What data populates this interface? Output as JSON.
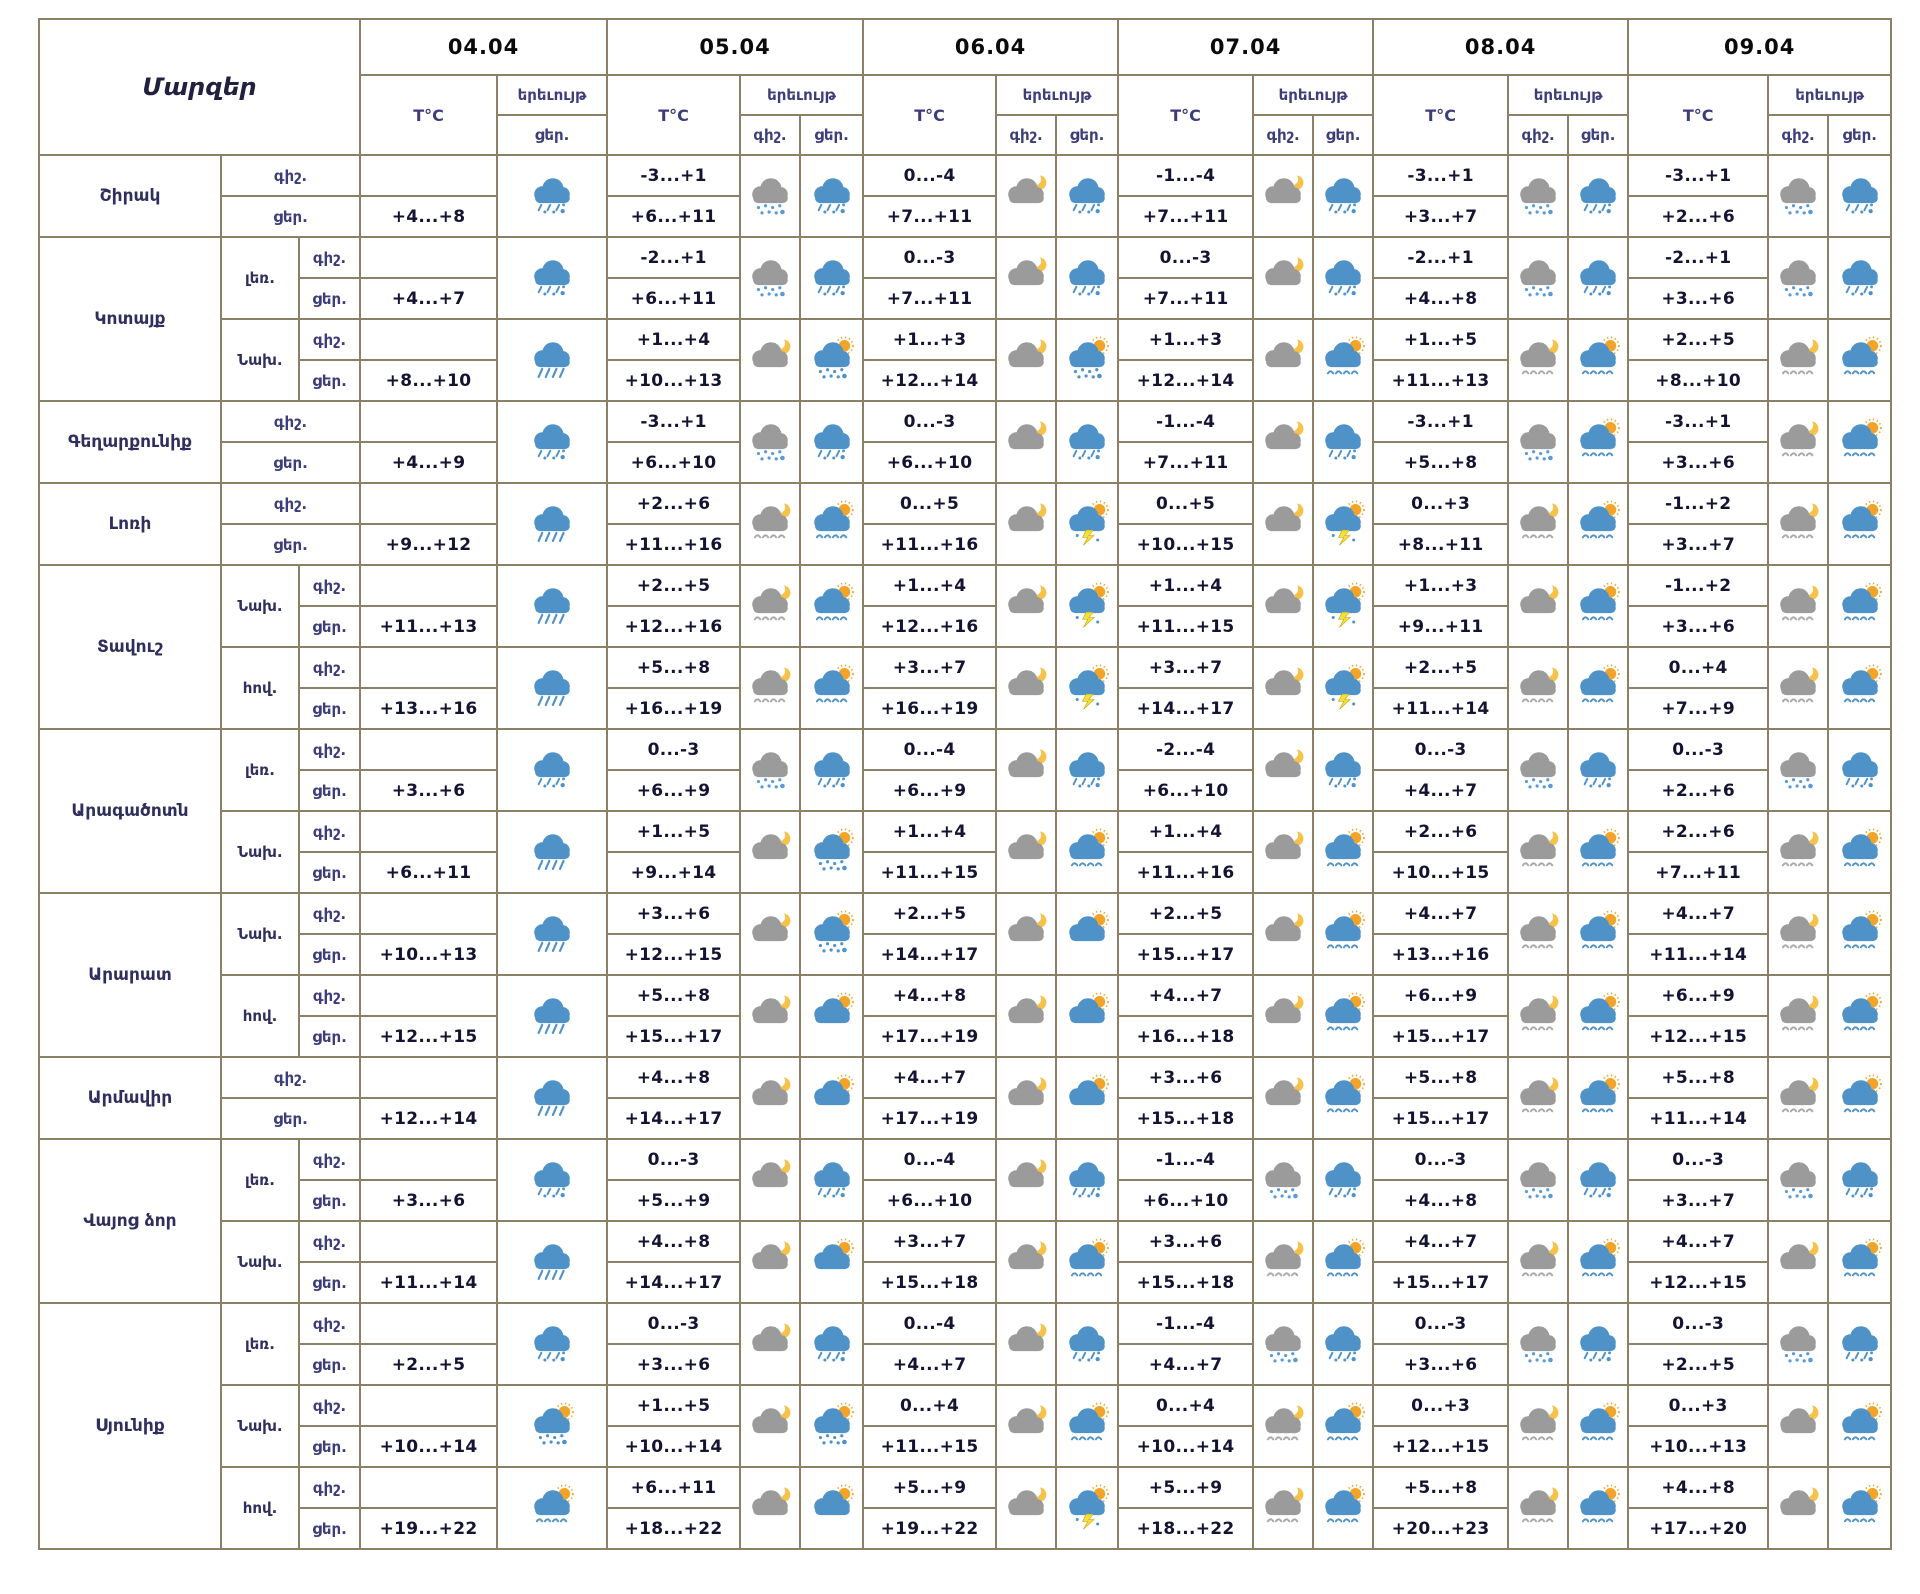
{
  "chart_data": {
    "type": "table",
    "title": "Մարզեր",
    "labels": {
      "temp": "T°C",
      "phenomenon": "երեւույթ",
      "night": "գիշ.",
      "day": "ցեր."
    },
    "dates": [
      "04.04",
      "05.04",
      "06.04",
      "07.04",
      "08.04",
      "09.04"
    ],
    "icon_types": [
      "sleet",
      "rain",
      "snow",
      "moon",
      "moon-drizzle",
      "sun",
      "sun-drizzle",
      "sun-sleet",
      "sun-thunder"
    ],
    "colors": {
      "border": "#8c8166",
      "cloud_blue": "#4e92c8",
      "cloud_gray": "#9b9b9b",
      "sun": "#f3a428",
      "moon": "#f6c24a",
      "bolt": "#f3e03a",
      "precip_blue": "#4e92c8",
      "precip_gray": "#a8a8a8",
      "snow_dot": "#5b9bd5"
    },
    "regions": [
      {
        "name": "Շիրակ",
        "subs": [
          {
            "label": null,
            "days": [
              {
                "n": "",
                "d": "+4...+8",
                "di": "sleet"
              },
              {
                "n": "-3...+1",
                "d": "+6...+11",
                "ni": "snow",
                "di": "sleet"
              },
              {
                "n": "0...-4",
                "d": "+7...+11",
                "ni": "moon",
                "di": "sleet"
              },
              {
                "n": "-1...-4",
                "d": "+7...+11",
                "ni": "moon",
                "di": "sleet"
              },
              {
                "n": "-3...+1",
                "d": "+3...+7",
                "ni": "snow",
                "di": "sleet"
              },
              {
                "n": "-3...+1",
                "d": "+2...+6",
                "ni": "snow",
                "di": "sleet"
              }
            ]
          }
        ]
      },
      {
        "name": "Կոտայք",
        "subs": [
          {
            "label": "լեռ.",
            "days": [
              {
                "n": "",
                "d": "+4...+7",
                "di": "sleet"
              },
              {
                "n": "-2...+1",
                "d": "+6...+11",
                "ni": "snow",
                "di": "sleet"
              },
              {
                "n": "0...-3",
                "d": "+7...+11",
                "ni": "moon",
                "di": "sleet"
              },
              {
                "n": "0...-3",
                "d": "+7...+11",
                "ni": "moon",
                "di": "sleet"
              },
              {
                "n": "-2...+1",
                "d": "+4...+8",
                "ni": "snow",
                "di": "sleet"
              },
              {
                "n": "-2...+1",
                "d": "+3...+6",
                "ni": "snow",
                "di": "sleet"
              }
            ]
          },
          {
            "label": "Նախ.",
            "days": [
              {
                "n": "",
                "d": "+8...+10",
                "di": "rain"
              },
              {
                "n": "+1...+4",
                "d": "+10...+13",
                "ni": "moon",
                "di": "sun-sleet"
              },
              {
                "n": "+1...+3",
                "d": "+12...+14",
                "ni": "moon",
                "di": "sun-sleet"
              },
              {
                "n": "+1...+3",
                "d": "+12...+14",
                "ni": "moon",
                "di": "sun-drizzle"
              },
              {
                "n": "+1...+5",
                "d": "+11...+13",
                "ni": "moon-drizzle",
                "di": "sun-drizzle"
              },
              {
                "n": "+2...+5",
                "d": "+8...+10",
                "ni": "moon-drizzle",
                "di": "sun-drizzle"
              }
            ]
          }
        ]
      },
      {
        "name": "Գեղարքունիք",
        "subs": [
          {
            "label": null,
            "days": [
              {
                "n": "",
                "d": "+4...+9",
                "di": "sleet"
              },
              {
                "n": "-3...+1",
                "d": "+6...+10",
                "ni": "snow",
                "di": "sleet"
              },
              {
                "n": "0...-3",
                "d": "+6...+10",
                "ni": "moon",
                "di": "sleet"
              },
              {
                "n": "-1...-4",
                "d": "+7...+11",
                "ni": "moon",
                "di": "sleet"
              },
              {
                "n": "-3...+1",
                "d": "+5...+8",
                "ni": "snow",
                "di": "sun-drizzle"
              },
              {
                "n": "-3...+1",
                "d": "+3...+6",
                "ni": "moon-drizzle",
                "di": "sun-drizzle"
              }
            ]
          }
        ]
      },
      {
        "name": "Լոռի",
        "subs": [
          {
            "label": null,
            "days": [
              {
                "n": "",
                "d": "+9...+12",
                "di": "rain"
              },
              {
                "n": "+2...+6",
                "d": "+11...+16",
                "ni": "moon-drizzle",
                "di": "sun-drizzle"
              },
              {
                "n": "0...+5",
                "d": "+11...+16",
                "ni": "moon",
                "di": "sun-thunder"
              },
              {
                "n": "0...+5",
                "d": "+10...+15",
                "ni": "moon",
                "di": "sun-thunder"
              },
              {
                "n": "0...+3",
                "d": "+8...+11",
                "ni": "moon-drizzle",
                "di": "sun-drizzle"
              },
              {
                "n": "-1...+2",
                "d": "+3...+7",
                "ni": "moon-drizzle",
                "di": "sun-drizzle"
              }
            ]
          }
        ]
      },
      {
        "name": "Տավուշ",
        "subs": [
          {
            "label": "Նախ.",
            "days": [
              {
                "n": "",
                "d": "+11...+13",
                "di": "rain"
              },
              {
                "n": "+2...+5",
                "d": "+12...+16",
                "ni": "moon-drizzle",
                "di": "sun-drizzle"
              },
              {
                "n": "+1...+4",
                "d": "+12...+16",
                "ni": "moon",
                "di": "sun-thunder"
              },
              {
                "n": "+1...+4",
                "d": "+11...+15",
                "ni": "moon",
                "di": "sun-thunder"
              },
              {
                "n": "+1...+3",
                "d": "+9...+11",
                "ni": "moon",
                "di": "sun-drizzle"
              },
              {
                "n": "-1...+2",
                "d": "+3...+6",
                "ni": "moon-drizzle",
                "di": "sun-drizzle"
              }
            ]
          },
          {
            "label": "հով.",
            "days": [
              {
                "n": "",
                "d": "+13...+16",
                "di": "rain"
              },
              {
                "n": "+5...+8",
                "d": "+16...+19",
                "ni": "moon-drizzle",
                "di": "sun-drizzle"
              },
              {
                "n": "+3...+7",
                "d": "+16...+19",
                "ni": "moon",
                "di": "sun-thunder"
              },
              {
                "n": "+3...+7",
                "d": "+14...+17",
                "ni": "moon",
                "di": "sun-thunder"
              },
              {
                "n": "+2...+5",
                "d": "+11...+14",
                "ni": "moon-drizzle",
                "di": "sun-drizzle"
              },
              {
                "n": "0...+4",
                "d": "+7...+9",
                "ni": "moon-drizzle",
                "di": "sun-drizzle"
              }
            ]
          }
        ]
      },
      {
        "name": "Արագածոտն",
        "subs": [
          {
            "label": "լեռ.",
            "days": [
              {
                "n": "",
                "d": "+3...+6",
                "di": "sleet"
              },
              {
                "n": "0...-3",
                "d": "+6...+9",
                "ni": "snow",
                "di": "sleet"
              },
              {
                "n": "0...-4",
                "d": "+6...+9",
                "ni": "moon",
                "di": "sleet"
              },
              {
                "n": "-2...-4",
                "d": "+6...+10",
                "ni": "moon",
                "di": "sleet"
              },
              {
                "n": "0...-3",
                "d": "+4...+7",
                "ni": "snow",
                "di": "sleet"
              },
              {
                "n": "0...-3",
                "d": "+2...+6",
                "ni": "snow",
                "di": "sleet"
              }
            ]
          },
          {
            "label": "Նախ.",
            "days": [
              {
                "n": "",
                "d": "+6...+11",
                "di": "rain"
              },
              {
                "n": "+1...+5",
                "d": "+9...+14",
                "ni": "moon",
                "di": "sun-sleet"
              },
              {
                "n": "+1...+4",
                "d": "+11...+15",
                "ni": "moon",
                "di": "sun-drizzle"
              },
              {
                "n": "+1...+4",
                "d": "+11...+16",
                "ni": "moon",
                "di": "sun-drizzle"
              },
              {
                "n": "+2...+6",
                "d": "+10...+15",
                "ni": "moon-drizzle",
                "di": "sun-drizzle"
              },
              {
                "n": "+2...+6",
                "d": "+7...+11",
                "ni": "moon-drizzle",
                "di": "sun-drizzle"
              }
            ]
          }
        ]
      },
      {
        "name": "Արարատ",
        "subs": [
          {
            "label": "Նախ.",
            "days": [
              {
                "n": "",
                "d": "+10...+13",
                "di": "rain"
              },
              {
                "n": "+3...+6",
                "d": "+12...+15",
                "ni": "moon",
                "di": "sun-sleet"
              },
              {
                "n": "+2...+5",
                "d": "+14...+17",
                "ni": "moon",
                "di": "sun"
              },
              {
                "n": "+2...+5",
                "d": "+15...+17",
                "ni": "moon",
                "di": "sun-drizzle"
              },
              {
                "n": "+4...+7",
                "d": "+13...+16",
                "ni": "moon-drizzle",
                "di": "sun-drizzle"
              },
              {
                "n": "+4...+7",
                "d": "+11...+14",
                "ni": "moon-drizzle",
                "di": "sun-drizzle"
              }
            ]
          },
          {
            "label": "հով.",
            "days": [
              {
                "n": "",
                "d": "+12...+15",
                "di": "rain"
              },
              {
                "n": "+5...+8",
                "d": "+15...+17",
                "ni": "moon",
                "di": "sun"
              },
              {
                "n": "+4...+8",
                "d": "+17...+19",
                "ni": "moon",
                "di": "sun"
              },
              {
                "n": "+4...+7",
                "d": "+16...+18",
                "ni": "moon",
                "di": "sun-drizzle"
              },
              {
                "n": "+6...+9",
                "d": "+15...+17",
                "ni": "moon-drizzle",
                "di": "sun-drizzle"
              },
              {
                "n": "+6...+9",
                "d": "+12...+15",
                "ni": "moon-drizzle",
                "di": "sun-drizzle"
              }
            ]
          }
        ]
      },
      {
        "name": "Արմավիր",
        "subs": [
          {
            "label": null,
            "days": [
              {
                "n": "",
                "d": "+12...+14",
                "di": "rain"
              },
              {
                "n": "+4...+8",
                "d": "+14...+17",
                "ni": "moon",
                "di": "sun"
              },
              {
                "n": "+4...+7",
                "d": "+17...+19",
                "ni": "moon",
                "di": "sun"
              },
              {
                "n": "+3...+6",
                "d": "+15...+18",
                "ni": "moon",
                "di": "sun-drizzle"
              },
              {
                "n": "+5...+8",
                "d": "+15...+17",
                "ni": "moon-drizzle",
                "di": "sun-drizzle"
              },
              {
                "n": "+5...+8",
                "d": "+11...+14",
                "ni": "moon-drizzle",
                "di": "sun-drizzle"
              }
            ]
          }
        ]
      },
      {
        "name": "Վայոց ձոր",
        "subs": [
          {
            "label": "լեռ.",
            "days": [
              {
                "n": "",
                "d": "+3...+6",
                "di": "sleet"
              },
              {
                "n": "0...-3",
                "d": "+5...+9",
                "ni": "moon",
                "di": "sleet"
              },
              {
                "n": "0...-4",
                "d": "+6...+10",
                "ni": "moon",
                "di": "sleet"
              },
              {
                "n": "-1...-4",
                "d": "+6...+10",
                "ni": "snow",
                "di": "sleet"
              },
              {
                "n": "0...-3",
                "d": "+4...+8",
                "ni": "snow",
                "di": "sleet"
              },
              {
                "n": "0...-3",
                "d": "+3...+7",
                "ni": "snow",
                "di": "sleet"
              }
            ]
          },
          {
            "label": "Նախ.",
            "days": [
              {
                "n": "",
                "d": "+11...+14",
                "di": "rain"
              },
              {
                "n": "+4...+8",
                "d": "+14...+17",
                "ni": "moon",
                "di": "sun"
              },
              {
                "n": "+3...+7",
                "d": "+15...+18",
                "ni": "moon",
                "di": "sun-drizzle"
              },
              {
                "n": "+3...+6",
                "d": "+15...+18",
                "ni": "moon-drizzle",
                "di": "sun-drizzle"
              },
              {
                "n": "+4...+7",
                "d": "+15...+17",
                "ni": "moon-drizzle",
                "di": "sun-drizzle"
              },
              {
                "n": "+4...+7",
                "d": "+12...+15",
                "ni": "moon",
                "di": "sun-drizzle"
              }
            ]
          }
        ]
      },
      {
        "name": "Սյունիք",
        "subs": [
          {
            "label": "լեռ.",
            "days": [
              {
                "n": "",
                "d": "+2...+5",
                "di": "sleet"
              },
              {
                "n": "0...-3",
                "d": "+3...+6",
                "ni": "moon",
                "di": "sleet"
              },
              {
                "n": "0...-4",
                "d": "+4...+7",
                "ni": "moon",
                "di": "sleet"
              },
              {
                "n": "-1...-4",
                "d": "+4...+7",
                "ni": "snow",
                "di": "sleet"
              },
              {
                "n": "0...-3",
                "d": "+3...+6",
                "ni": "snow",
                "di": "sleet"
              },
              {
                "n": "0...-3",
                "d": "+2...+5",
                "ni": "snow",
                "di": "sleet"
              }
            ]
          },
          {
            "label": "Նախ.",
            "days": [
              {
                "n": "",
                "d": "+10...+14",
                "di": "sun-sleet"
              },
              {
                "n": "+1...+5",
                "d": "+10...+14",
                "ni": "moon",
                "di": "sun-sleet"
              },
              {
                "n": "0...+4",
                "d": "+11...+15",
                "ni": "moon",
                "di": "sun-drizzle"
              },
              {
                "n": "0...+4",
                "d": "+10...+14",
                "ni": "moon-drizzle",
                "di": "sun-drizzle"
              },
              {
                "n": "0...+3",
                "d": "+12...+15",
                "ni": "moon-drizzle",
                "di": "sun-drizzle"
              },
              {
                "n": "0...+3",
                "d": "+10...+13",
                "ni": "moon",
                "di": "sun-drizzle"
              }
            ]
          },
          {
            "label": "հով.",
            "days": [
              {
                "n": "",
                "d": "+19...+22",
                "di": "sun-drizzle"
              },
              {
                "n": "+6...+11",
                "d": "+18...+22",
                "ni": "moon",
                "di": "sun"
              },
              {
                "n": "+5...+9",
                "d": "+19...+22",
                "ni": "moon",
                "di": "sun-thunder"
              },
              {
                "n": "+5...+9",
                "d": "+18...+22",
                "ni": "moon-drizzle",
                "di": "sun-drizzle"
              },
              {
                "n": "+5...+8",
                "d": "+20...+23",
                "ni": "moon-drizzle",
                "di": "sun-drizzle"
              },
              {
                "n": "+4...+8",
                "d": "+17...+20",
                "ni": "moon",
                "di": "sun-drizzle"
              }
            ]
          }
        ]
      }
    ]
  }
}
